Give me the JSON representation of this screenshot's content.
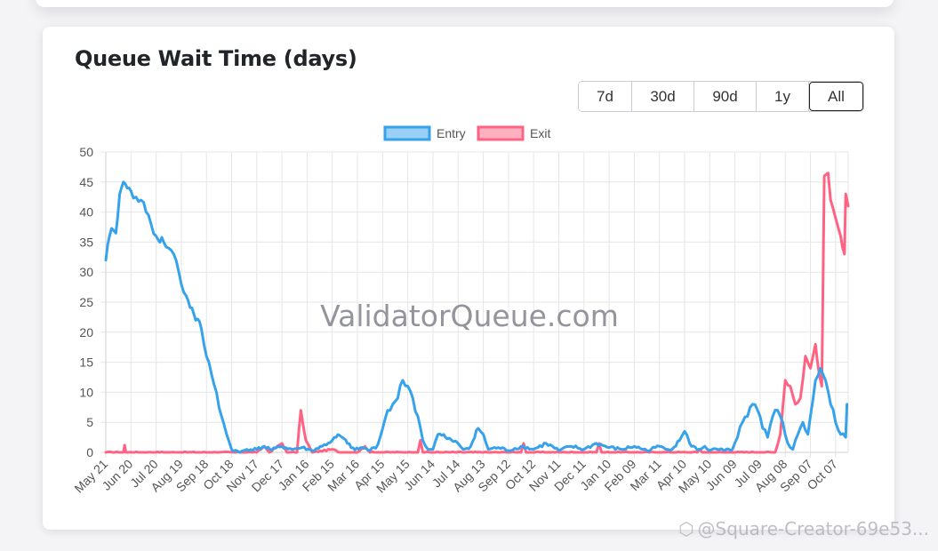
{
  "card": {
    "title": "Queue Wait Time (days)"
  },
  "range_buttons": [
    "7d",
    "30d",
    "90d",
    "1y",
    "All"
  ],
  "active_range": "All",
  "watermark": {
    "text": "@Square-Creator-69e53..."
  },
  "chart_data": {
    "type": "line",
    "title": "Queue Wait Time (days)",
    "watermark": "ValidatorQueue.com",
    "xlabel": "",
    "ylabel": "",
    "ylim": [
      0,
      50
    ],
    "yticks": [
      0,
      5,
      10,
      15,
      20,
      25,
      30,
      35,
      40,
      45,
      50
    ],
    "legend_position": "top-center",
    "grid": true,
    "categories": [
      "May 21",
      "Jun 20",
      "Jul 20",
      "Aug 19",
      "Sep 18",
      "Oct 18",
      "Nov 17",
      "Dec 17",
      "Jan 16",
      "Feb 15",
      "Mar 16",
      "Apr 15",
      "May 15",
      "Jun 14",
      "Jul 14",
      "Aug 13",
      "Sep 12",
      "Oct 12",
      "Nov 11",
      "Dec 11",
      "Jan 10",
      "Feb 09",
      "Mar 11",
      "Apr 10",
      "May 10",
      "Jun 09",
      "Jul 09",
      "Aug 08",
      "Sep 07",
      "Oct 07"
    ],
    "x_end": 29.5,
    "series": [
      {
        "name": "Entry",
        "color": "#36a2eb",
        "fill": "rgba(54,162,235,0.5)",
        "points": [
          [
            0,
            32
          ],
          [
            0.15,
            36
          ],
          [
            0.3,
            37
          ],
          [
            0.4,
            36.5
          ],
          [
            0.55,
            43
          ],
          [
            0.7,
            45
          ],
          [
            0.85,
            44
          ],
          [
            1,
            43.5
          ],
          [
            1.2,
            42.5
          ],
          [
            1.4,
            42
          ],
          [
            1.6,
            40
          ],
          [
            1.8,
            38
          ],
          [
            2,
            36
          ],
          [
            2.3,
            35
          ],
          [
            2.5,
            34
          ],
          [
            2.7,
            33
          ],
          [
            2.9,
            30
          ],
          [
            3,
            28
          ],
          [
            3.2,
            26
          ],
          [
            3.5,
            23
          ],
          [
            3.8,
            20.5
          ],
          [
            4,
            16
          ],
          [
            4.2,
            13
          ],
          [
            4.4,
            10
          ],
          [
            4.6,
            6
          ],
          [
            4.8,
            3
          ],
          [
            5,
            0.5
          ],
          [
            5.3,
            0
          ],
          [
            5.6,
            0.5
          ],
          [
            6,
            0.5
          ],
          [
            6.3,
            1
          ],
          [
            6.6,
            0.4
          ],
          [
            7,
            1
          ],
          [
            7.4,
            0.5
          ],
          [
            7.8,
            0.8
          ],
          [
            8.2,
            0.3
          ],
          [
            8.6,
            1
          ],
          [
            9,
            2
          ],
          [
            9.3,
            2.8
          ],
          [
            9.6,
            1.5
          ],
          [
            9.9,
            0.4
          ],
          [
            10.2,
            0.8
          ],
          [
            10.5,
            0.3
          ],
          [
            10.8,
            1.2
          ],
          [
            11,
            4
          ],
          [
            11.2,
            7
          ],
          [
            11.4,
            8
          ],
          [
            11.6,
            9
          ],
          [
            11.8,
            12
          ],
          [
            12,
            11
          ],
          [
            12.2,
            9
          ],
          [
            12.4,
            6
          ],
          [
            12.6,
            2
          ],
          [
            12.8,
            0.5
          ],
          [
            13,
            0.5
          ],
          [
            13.2,
            3
          ],
          [
            13.5,
            2.5
          ],
          [
            13.8,
            1.8
          ],
          [
            14,
            1.5
          ],
          [
            14.2,
            0.5
          ],
          [
            14.5,
            1
          ],
          [
            14.8,
            4
          ],
          [
            15,
            3
          ],
          [
            15.2,
            0.5
          ],
          [
            15.6,
            0.8
          ],
          [
            16,
            0.3
          ],
          [
            16.5,
            1
          ],
          [
            17,
            0.5
          ],
          [
            17.5,
            1.5
          ],
          [
            18,
            0.3
          ],
          [
            18.5,
            1
          ],
          [
            19,
            0.5
          ],
          [
            19.5,
            1.5
          ],
          [
            20,
            0.8
          ],
          [
            20.5,
            0.5
          ],
          [
            21,
            1
          ],
          [
            21.5,
            0.3
          ],
          [
            22,
            1
          ],
          [
            22.5,
            0.5
          ],
          [
            22.8,
            2
          ],
          [
            23,
            3.5
          ],
          [
            23.2,
            1.5
          ],
          [
            23.5,
            0.4
          ],
          [
            23.8,
            1
          ],
          [
            24,
            0.3
          ],
          [
            24.3,
            0.5
          ],
          [
            24.6,
            0.3
          ],
          [
            24.9,
            0.5
          ],
          [
            25.1,
            2.5
          ],
          [
            25.3,
            5
          ],
          [
            25.5,
            6
          ],
          [
            25.7,
            8
          ],
          [
            25.9,
            7
          ],
          [
            26.1,
            4
          ],
          [
            26.3,
            2.5
          ],
          [
            26.5,
            6
          ],
          [
            26.7,
            7
          ],
          [
            26.9,
            5
          ],
          [
            27.1,
            1.5
          ],
          [
            27.3,
            0.5
          ],
          [
            27.5,
            3
          ],
          [
            27.7,
            5
          ],
          [
            27.9,
            3
          ],
          [
            28,
            6
          ],
          [
            28.2,
            12
          ],
          [
            28.4,
            14
          ],
          [
            28.6,
            12
          ],
          [
            28.8,
            8
          ],
          [
            29,
            5
          ],
          [
            29.2,
            3
          ],
          [
            29.4,
            2.5
          ],
          [
            29.45,
            8
          ]
        ]
      },
      {
        "name": "Exit",
        "color": "#ff6384",
        "fill": "rgba(255,99,132,0.5)",
        "points": [
          [
            0,
            0
          ],
          [
            0.7,
            0
          ],
          [
            0.75,
            1.2
          ],
          [
            0.8,
            0
          ],
          [
            6,
            0
          ],
          [
            6.3,
            1
          ],
          [
            6.5,
            0
          ],
          [
            7,
            1.5
          ],
          [
            7.2,
            0
          ],
          [
            7.6,
            0
          ],
          [
            7.75,
            7
          ],
          [
            7.95,
            2
          ],
          [
            8.2,
            0
          ],
          [
            9,
            0.5
          ],
          [
            9.3,
            0
          ],
          [
            10,
            0
          ],
          [
            10.3,
            1
          ],
          [
            10.5,
            0
          ],
          [
            12.4,
            0
          ],
          [
            12.5,
            2
          ],
          [
            12.6,
            0
          ],
          [
            16.5,
            0
          ],
          [
            16.6,
            1.5
          ],
          [
            16.7,
            0
          ],
          [
            19.5,
            0
          ],
          [
            19.6,
            1.5
          ],
          [
            19.7,
            0
          ],
          [
            23.5,
            0
          ],
          [
            23.6,
            0.5
          ],
          [
            23.7,
            0
          ],
          [
            26.6,
            0
          ],
          [
            26.8,
            3
          ],
          [
            27,
            12
          ],
          [
            27.2,
            11
          ],
          [
            27.4,
            8
          ],
          [
            27.6,
            9
          ],
          [
            27.8,
            16
          ],
          [
            28,
            14
          ],
          [
            28.2,
            18
          ],
          [
            28.35,
            13
          ],
          [
            28.45,
            11
          ],
          [
            28.55,
            46
          ],
          [
            28.7,
            46.5
          ],
          [
            28.8,
            42
          ],
          [
            29,
            39
          ],
          [
            29.2,
            36
          ],
          [
            29.35,
            33
          ],
          [
            29.4,
            43
          ],
          [
            29.5,
            41
          ]
        ]
      }
    ]
  }
}
